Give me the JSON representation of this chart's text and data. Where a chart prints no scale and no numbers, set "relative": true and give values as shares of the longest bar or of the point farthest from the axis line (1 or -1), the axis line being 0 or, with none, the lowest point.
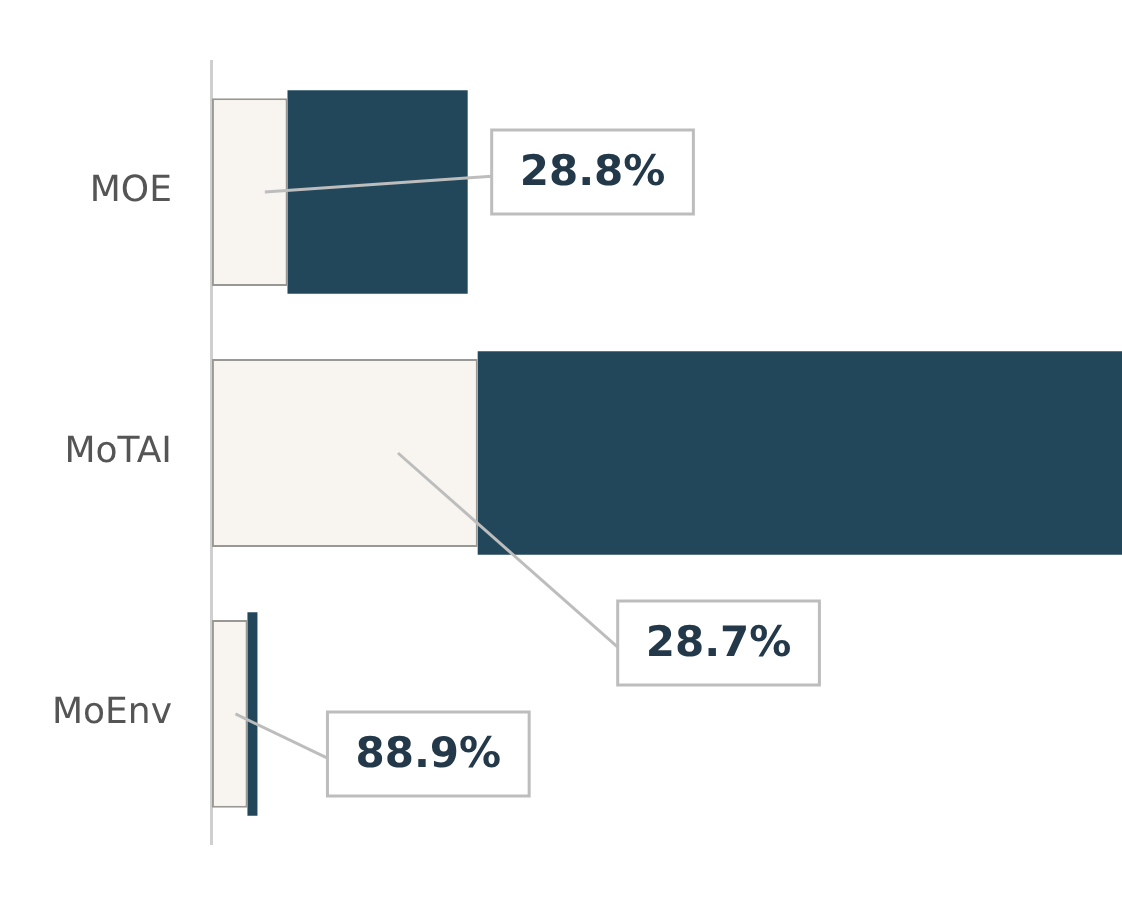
{
  "chart_data": {
    "type": "bar",
    "orientation": "horizontal",
    "stacked": true,
    "relative": true,
    "categories": [
      "MOE",
      "MoTAI",
      "MoEnv"
    ],
    "series": [
      {
        "color": "#f8f5f0",
        "values": [
          0.083,
          0.292,
          0.039
        ]
      },
      {
        "color": "#23475a",
        "values": [
          0.198,
          0.708,
          0.011
        ]
      }
    ],
    "annotations": [
      "28.8%",
      "28.7%",
      "88.9%"
    ],
    "grid": false,
    "legend": false
  }
}
